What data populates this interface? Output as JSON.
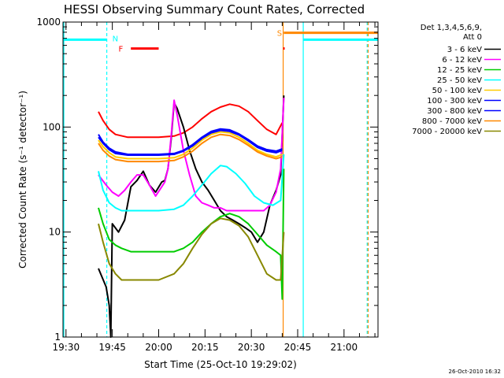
{
  "chart_data": {
    "type": "line",
    "title": "HESSI Observing Summary Count Rates, Corrected",
    "xlabel": "Start Time (25-Oct-10 19:29:02)",
    "ylabel": "Corrected Count Rate (s⁻¹ detector⁻¹)",
    "date_stamp": "26-Oct-2010 16:32",
    "y_scale": "log",
    "ylim": [
      1,
      1000
    ],
    "y_ticks": [
      1,
      10,
      100,
      1000
    ],
    "x_range_minutes": [
      1169.03,
      1271
    ],
    "x_ticks": [
      {
        "m": 1170,
        "label": "19:30"
      },
      {
        "m": 1185,
        "label": "19:45"
      },
      {
        "m": 1200,
        "label": "20:00"
      },
      {
        "m": 1215,
        "label": "20:15"
      },
      {
        "m": 1230,
        "label": "20:30"
      },
      {
        "m": 1245,
        "label": "20:45"
      },
      {
        "m": 1260,
        "label": "21:00"
      }
    ],
    "legend": {
      "header": [
        "Det 1,3,4,5,6,9,",
        "Att 0"
      ],
      "position": "right"
    },
    "series": [
      {
        "name": "3 - 6 keV",
        "color": "#000000",
        "points": [
          [
            1180.5,
            4.5
          ],
          [
            1183,
            3
          ],
          [
            1184,
            2
          ],
          [
            1184.5,
            1
          ],
          [
            1185,
            12
          ],
          [
            1187,
            10
          ],
          [
            1189,
            13
          ],
          [
            1191,
            27
          ],
          [
            1193,
            31
          ],
          [
            1195,
            38
          ],
          [
            1197,
            28
          ],
          [
            1199,
            24
          ],
          [
            1201,
            30
          ],
          [
            1202,
            31
          ],
          [
            1203,
            40
          ],
          [
            1204,
            75
          ],
          [
            1205,
            170
          ],
          [
            1206,
            150
          ],
          [
            1208,
            100
          ],
          [
            1210,
            60
          ],
          [
            1212,
            40
          ],
          [
            1214,
            30
          ],
          [
            1216,
            25
          ],
          [
            1218,
            20
          ],
          [
            1220,
            16
          ],
          [
            1222,
            14
          ],
          [
            1224,
            13
          ],
          [
            1226,
            12
          ],
          [
            1228,
            11
          ],
          [
            1230,
            10
          ],
          [
            1232,
            8
          ],
          [
            1234,
            10
          ],
          [
            1236,
            18
          ],
          [
            1238,
            25
          ],
          [
            1239.5,
            35
          ],
          [
            1240.5,
            200
          ]
        ]
      },
      {
        "name": "6 - 12 keV",
        "color": "#ff00ff",
        "points": [
          [
            1180.5,
            35
          ],
          [
            1183,
            28
          ],
          [
            1185,
            24
          ],
          [
            1187,
            22
          ],
          [
            1189,
            25
          ],
          [
            1191,
            30
          ],
          [
            1193,
            35
          ],
          [
            1195,
            35
          ],
          [
            1197,
            28
          ],
          [
            1199,
            22
          ],
          [
            1201,
            27
          ],
          [
            1202,
            30
          ],
          [
            1203,
            40
          ],
          [
            1204,
            80
          ],
          [
            1205,
            180
          ],
          [
            1206,
            130
          ],
          [
            1208,
            60
          ],
          [
            1210,
            35
          ],
          [
            1212,
            22
          ],
          [
            1214,
            19
          ],
          [
            1216,
            18
          ],
          [
            1218,
            17
          ],
          [
            1220,
            17
          ],
          [
            1222,
            16
          ],
          [
            1224,
            16
          ],
          [
            1226,
            16
          ],
          [
            1228,
            16
          ],
          [
            1230,
            16
          ],
          [
            1232,
            16
          ],
          [
            1234,
            16
          ],
          [
            1236,
            18
          ],
          [
            1238,
            24
          ],
          [
            1239.5,
            40
          ],
          [
            1240.5,
            190
          ]
        ]
      },
      {
        "name": "12 - 25 keV",
        "color": "#00cc00",
        "points": [
          [
            1180.5,
            17
          ],
          [
            1182,
            12
          ],
          [
            1184,
            8.5
          ],
          [
            1186,
            7.5
          ],
          [
            1188,
            7
          ],
          [
            1191,
            6.5
          ],
          [
            1195,
            6.5
          ],
          [
            1200,
            6.5
          ],
          [
            1205,
            6.5
          ],
          [
            1208,
            7
          ],
          [
            1211,
            8
          ],
          [
            1214,
            10
          ],
          [
            1217,
            12
          ],
          [
            1220,
            14
          ],
          [
            1223,
            15
          ],
          [
            1226,
            14
          ],
          [
            1229,
            12
          ],
          [
            1232,
            9.5
          ],
          [
            1235,
            7.5
          ],
          [
            1238,
            6.5
          ],
          [
            1239.5,
            6
          ],
          [
            1240,
            2.3
          ],
          [
            1240.5,
            40
          ]
        ]
      },
      {
        "name": "25 - 50 keV",
        "color": "#00ffff",
        "points": [
          [
            1180.5,
            38
          ],
          [
            1182,
            25
          ],
          [
            1184,
            19
          ],
          [
            1186,
            17
          ],
          [
            1188,
            16
          ],
          [
            1191,
            16
          ],
          [
            1195,
            16
          ],
          [
            1200,
            16
          ],
          [
            1205,
            16.5
          ],
          [
            1208,
            18
          ],
          [
            1211,
            22
          ],
          [
            1214,
            28
          ],
          [
            1217,
            36
          ],
          [
            1220,
            43
          ],
          [
            1222,
            42
          ],
          [
            1225,
            36
          ],
          [
            1228,
            29
          ],
          [
            1231,
            22
          ],
          [
            1234,
            19
          ],
          [
            1237,
            18
          ],
          [
            1239.5,
            20
          ],
          [
            1240.5,
            55
          ]
        ]
      },
      {
        "name": "50 - 100 keV",
        "color": "#ffcc00",
        "points": [
          [
            1180.5,
            75
          ],
          [
            1182,
            65
          ],
          [
            1184,
            57
          ],
          [
            1186,
            52
          ],
          [
            1190,
            50
          ],
          [
            1195,
            50
          ],
          [
            1200,
            50
          ],
          [
            1205,
            51
          ],
          [
            1208,
            55
          ],
          [
            1211,
            63
          ],
          [
            1214,
            75
          ],
          [
            1217,
            85
          ],
          [
            1220,
            90
          ],
          [
            1223,
            88
          ],
          [
            1226,
            80
          ],
          [
            1229,
            70
          ],
          [
            1232,
            60
          ],
          [
            1235,
            55
          ],
          [
            1238,
            52
          ],
          [
            1240,
            55
          ]
        ]
      },
      {
        "name": "100 - 300 keV",
        "color": "#0000ff",
        "points": [
          [
            1180.5,
            85
          ],
          [
            1182,
            72
          ],
          [
            1184,
            63
          ],
          [
            1186,
            58
          ],
          [
            1190,
            55
          ],
          [
            1195,
            55
          ],
          [
            1200,
            55
          ],
          [
            1205,
            56
          ],
          [
            1208,
            60
          ],
          [
            1211,
            68
          ],
          [
            1214,
            80
          ],
          [
            1217,
            91
          ],
          [
            1220,
            96
          ],
          [
            1223,
            94
          ],
          [
            1226,
            86
          ],
          [
            1229,
            76
          ],
          [
            1232,
            66
          ],
          [
            1235,
            61
          ],
          [
            1238,
            59
          ],
          [
            1240,
            62
          ]
        ]
      },
      {
        "name": "300 - 800 keV",
        "color": "#0000ff",
        "points": [
          [
            1180.5,
            80
          ],
          [
            1182,
            70
          ],
          [
            1184,
            61
          ],
          [
            1186,
            56
          ],
          [
            1190,
            54
          ],
          [
            1195,
            54
          ],
          [
            1200,
            54
          ],
          [
            1205,
            55
          ],
          [
            1208,
            59
          ],
          [
            1211,
            66
          ],
          [
            1214,
            78
          ],
          [
            1217,
            88
          ],
          [
            1220,
            93
          ],
          [
            1223,
            91
          ],
          [
            1226,
            84
          ],
          [
            1229,
            74
          ],
          [
            1232,
            64
          ],
          [
            1235,
            59
          ],
          [
            1238,
            57
          ],
          [
            1240,
            60
          ]
        ]
      },
      {
        "name": "800 - 7000 keV",
        "color": "#ff8800",
        "points": [
          [
            1180.5,
            70
          ],
          [
            1182,
            60
          ],
          [
            1184,
            53
          ],
          [
            1186,
            49
          ],
          [
            1190,
            47
          ],
          [
            1195,
            47
          ],
          [
            1200,
            47
          ],
          [
            1205,
            48
          ],
          [
            1208,
            52
          ],
          [
            1211,
            59
          ],
          [
            1214,
            70
          ],
          [
            1217,
            80
          ],
          [
            1220,
            85
          ],
          [
            1223,
            83
          ],
          [
            1226,
            76
          ],
          [
            1229,
            67
          ],
          [
            1232,
            58
          ],
          [
            1235,
            53
          ],
          [
            1238,
            50
          ],
          [
            1240,
            52
          ]
        ]
      },
      {
        "name": "7000 - 20000 keV",
        "color": "#888800",
        "points": [
          [
            1180.5,
            12
          ],
          [
            1182,
            8
          ],
          [
            1184,
            5
          ],
          [
            1186,
            4
          ],
          [
            1188,
            3.5
          ],
          [
            1191,
            3.5
          ],
          [
            1195,
            3.5
          ],
          [
            1200,
            3.5
          ],
          [
            1205,
            4
          ],
          [
            1208,
            5
          ],
          [
            1211,
            7
          ],
          [
            1214,
            9.5
          ],
          [
            1217,
            12
          ],
          [
            1220,
            13.5
          ],
          [
            1223,
            13
          ],
          [
            1226,
            11.5
          ],
          [
            1229,
            9
          ],
          [
            1232,
            6
          ],
          [
            1235,
            4
          ],
          [
            1238,
            3.5
          ],
          [
            1239.5,
            3.5
          ],
          [
            1240.5,
            10
          ]
        ]
      },
      {
        "name": "",
        "color": "#ff0000",
        "points": [
          [
            1180.5,
            140
          ],
          [
            1182,
            115
          ],
          [
            1184,
            95
          ],
          [
            1186,
            85
          ],
          [
            1190,
            80
          ],
          [
            1195,
            80
          ],
          [
            1200,
            80
          ],
          [
            1205,
            82
          ],
          [
            1208,
            88
          ],
          [
            1211,
            100
          ],
          [
            1214,
            120
          ],
          [
            1217,
            140
          ],
          [
            1220,
            155
          ],
          [
            1223,
            165
          ],
          [
            1226,
            158
          ],
          [
            1229,
            140
          ],
          [
            1232,
            115
          ],
          [
            1235,
            95
          ],
          [
            1238,
            85
          ],
          [
            1240,
            110
          ]
        ]
      }
    ],
    "vlines": [
      {
        "m": 1169.3,
        "color": "#00ffff",
        "dash": false
      },
      {
        "m": 1183.2,
        "color": "#00ffff",
        "dash": true
      },
      {
        "m": 1240.3,
        "color": "#ff8800",
        "dash": false
      },
      {
        "m": 1246.8,
        "color": "#00ffff",
        "dash": false
      },
      {
        "m": 1267.5,
        "color": "#00ffff",
        "dash": true
      },
      {
        "m": 1267.8,
        "color": "#ff8800",
        "dash": true
      }
    ],
    "hbars": [
      {
        "m1": 1169.3,
        "m2": 1183.2,
        "y": 680,
        "color": "#00ffff"
      },
      {
        "m1": 1246.8,
        "m2": 1271,
        "y": 680,
        "color": "#00ffff"
      },
      {
        "m1": 1240.5,
        "m2": 1271,
        "y": 790,
        "color": "#ff8800"
      },
      {
        "m1": 1191,
        "m2": 1200,
        "y": 560,
        "color": "#ff0000"
      },
      {
        "m1": 1240.3,
        "m2": 1240.8,
        "y": 560,
        "color": "#ff0000"
      }
    ],
    "markers": [
      {
        "text": "N",
        "m": 1185,
        "y": 700,
        "color": "#00ffff"
      },
      {
        "text": "F",
        "m": 1187,
        "y": 560,
        "color": "#ff0000"
      },
      {
        "text": "S",
        "m": 1238.3,
        "y": 790,
        "color": "#ff8800"
      }
    ]
  }
}
